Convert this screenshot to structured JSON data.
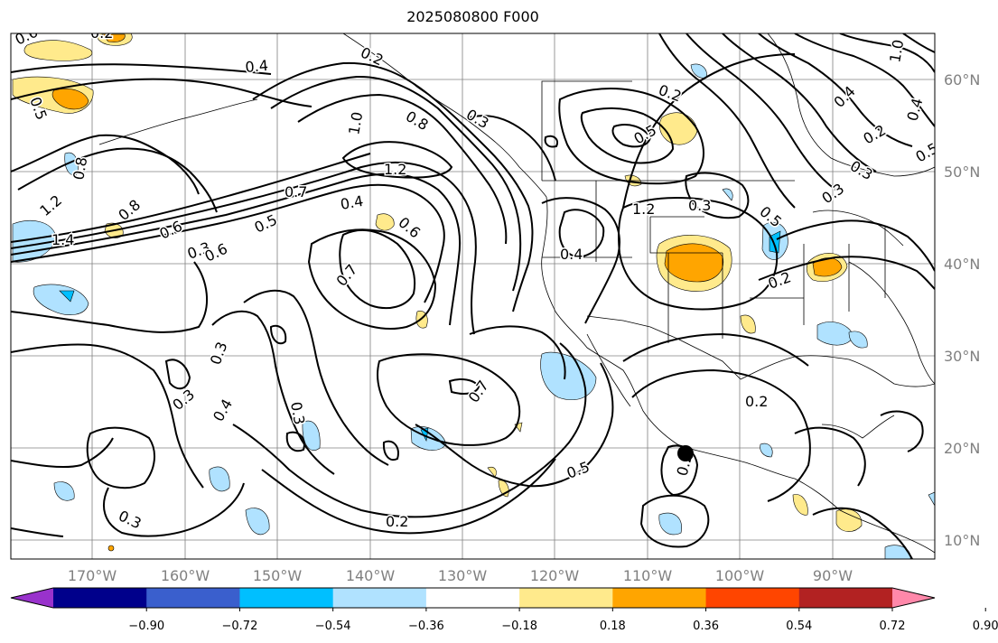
{
  "title": "2025080800 F000",
  "map": {
    "lon_labels": [
      "170°W",
      "160°W",
      "150°W",
      "140°W",
      "130°W",
      "120°W",
      "110°W",
      "100°W",
      "90°W"
    ],
    "lat_labels": [
      "60°N",
      "50°N",
      "40°N",
      "30°N",
      "20°N",
      "10°N"
    ],
    "grid_color": "#808080",
    "contour_labels": [
      "0.6",
      "0.2",
      "0.4",
      "0.2",
      "1.0",
      "0.8",
      "0.3",
      "1.2",
      "0.5",
      "0.2",
      "1.0",
      "0.7",
      "0.4",
      "0.8",
      "0.6",
      "0.3",
      "0.5",
      "1.4",
      "1.2",
      "0.8",
      "0.6",
      "0.5",
      "0.6",
      "0.7",
      "0.4",
      "1.2",
      "0.3",
      "0.5",
      "0.3",
      "0.2",
      "0.5",
      "0.4",
      "0.2",
      "0.3",
      "0.4",
      "0.3",
      "0.3",
      "0.4",
      "0.3",
      "0.7",
      "0.5",
      "0.2",
      "0.2",
      "0.3",
      "0.2"
    ],
    "marker": "filled-circle"
  },
  "colorbar": {
    "colors": [
      "#9932cc",
      "#00008b",
      "#3a5fcd",
      "#00bfff",
      "#b0e2ff",
      "#ffffff",
      "#ffea8c",
      "#ffa500",
      "#ff4500",
      "#b22222",
      "#ff88aa"
    ],
    "tick_labels": [
      "−0.90",
      "−0.72",
      "−0.54",
      "−0.36",
      "−0.18",
      "0.18",
      "0.36",
      "0.54",
      "0.72",
      "0.90"
    ]
  }
}
